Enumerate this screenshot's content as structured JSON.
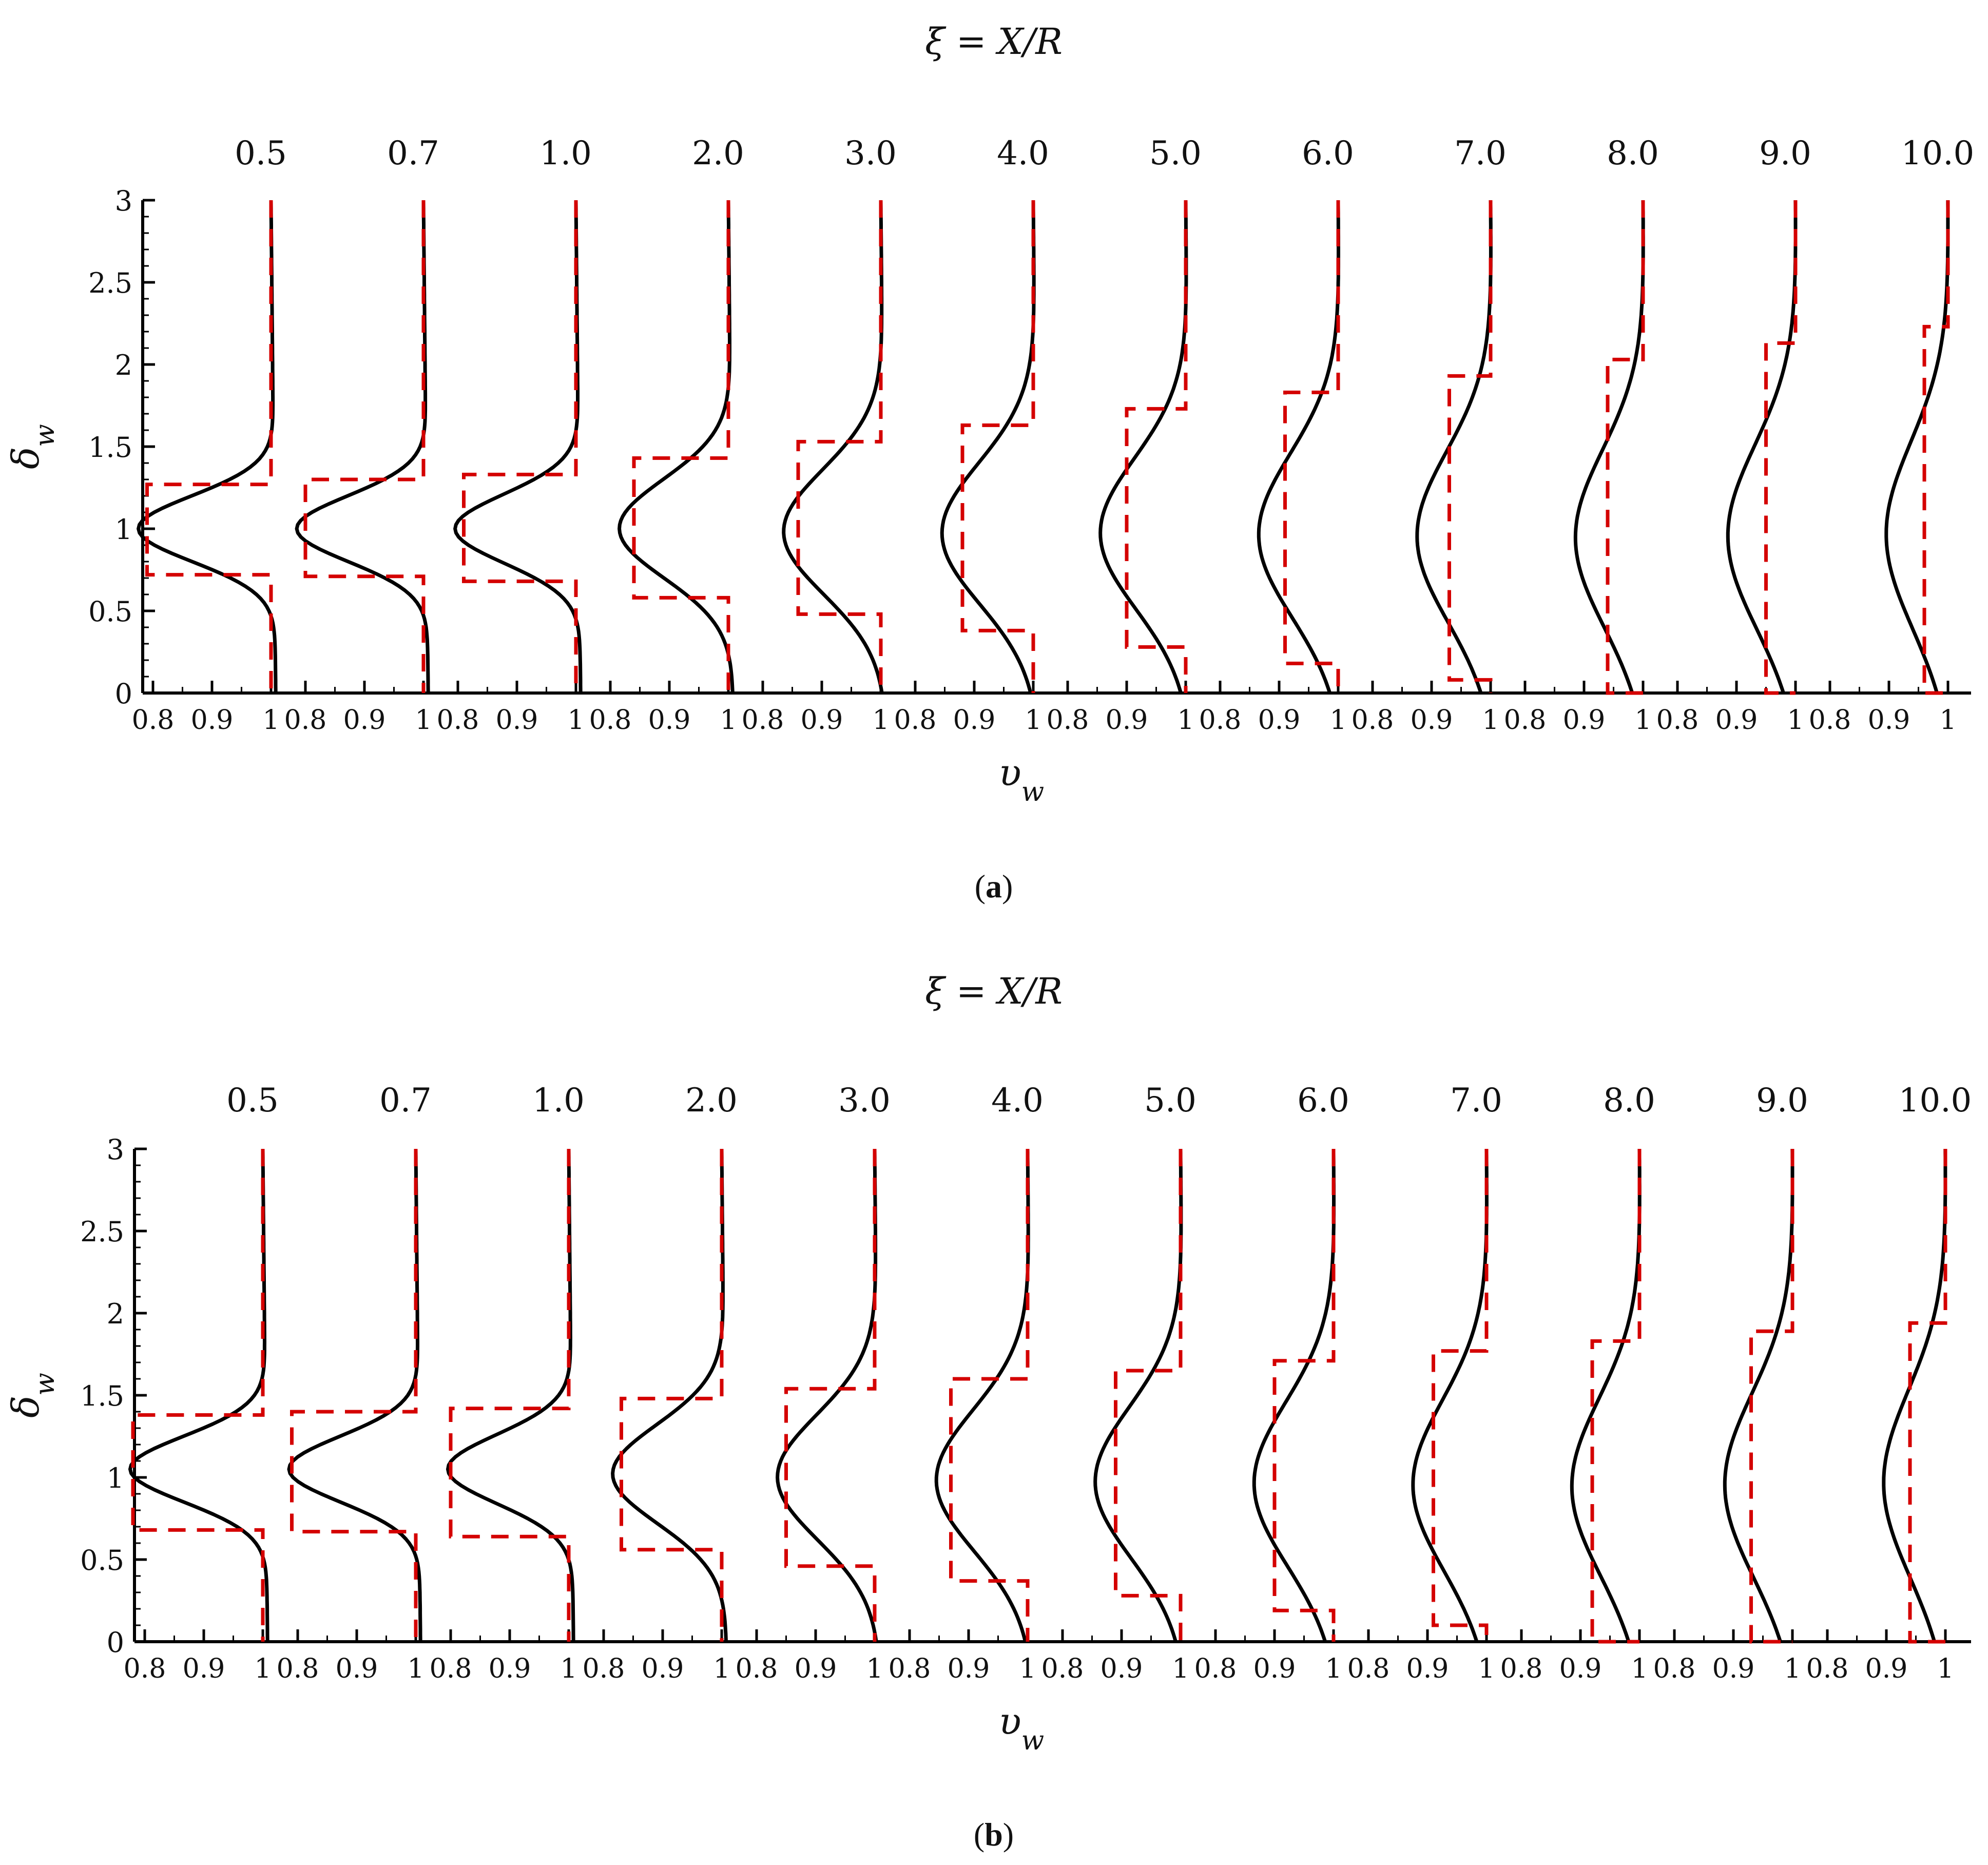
{
  "figure": {
    "panels": [
      {
        "caption_prefix": "(",
        "caption_letter": "a",
        "caption_suffix": ")"
      },
      {
        "caption_prefix": "(",
        "caption_letter": "b",
        "caption_suffix": ")"
      }
    ]
  },
  "colors": {
    "solid_line": "#000000",
    "dashed_line": "#d40000",
    "axis": "#000000"
  },
  "chart_data": [
    {
      "type": "line",
      "panel": "(a)",
      "top_label": "ξ = X/R",
      "ylabel": "δ_w",
      "xlabel": "υ_w",
      "ylim": [
        0,
        3
      ],
      "yticks": [
        "0",
        "0.5",
        "1",
        "1.5",
        "2",
        "2.5",
        "3"
      ],
      "xticks_per_station": [
        "0.8",
        "0.9",
        "1"
      ],
      "xlim_per_station": [
        0.76,
        1.02
      ],
      "stations": [
        "0.5",
        "0.7",
        "1.0",
        "2.0",
        "3.0",
        "4.0",
        "5.0",
        "6.0",
        "7.0",
        "8.0",
        "9.0",
        "10.0"
      ],
      "series": [
        {
          "style": "solid",
          "profiles": [
            {
              "station": "0.5",
              "min_velocity": 0.77,
              "center": 1.0,
              "width": 0.2
            },
            {
              "station": "0.7",
              "min_velocity": 0.78,
              "center": 1.0,
              "width": 0.2
            },
            {
              "station": "1.0",
              "min_velocity": 0.79,
              "center": 1.0,
              "width": 0.21
            },
            {
              "station": "2.0",
              "min_velocity": 0.81,
              "center": 1.0,
              "width": 0.3
            },
            {
              "station": "3.0",
              "min_velocity": 0.83,
              "center": 0.98,
              "width": 0.38
            },
            {
              "station": "4.0",
              "min_velocity": 0.84,
              "center": 0.97,
              "width": 0.43
            },
            {
              "station": "5.0",
              "min_velocity": 0.85,
              "center": 0.97,
              "width": 0.46
            },
            {
              "station": "6.0",
              "min_velocity": 0.86,
              "center": 0.96,
              "width": 0.5
            },
            {
              "station": "7.0",
              "min_velocity": 0.87,
              "center": 0.95,
              "width": 0.52
            },
            {
              "station": "8.0",
              "min_velocity": 0.88,
              "center": 0.94,
              "width": 0.54
            },
            {
              "station": "9.0",
              "min_velocity": 0.88,
              "center": 0.95,
              "width": 0.56
            },
            {
              "station": "10.0",
              "min_velocity": 0.89,
              "center": 0.96,
              "width": 0.57
            }
          ]
        },
        {
          "style": "dashed",
          "profiles": [
            {
              "station": "0.5",
              "deficit_velocity": 0.79,
              "lower": 0.72,
              "upper": 1.27,
              "top": 1.44
            },
            {
              "station": "0.7",
              "deficit_velocity": 0.8,
              "lower": 0.71,
              "upper": 1.3,
              "top": 1.44
            },
            {
              "station": "1.0",
              "deficit_velocity": 0.81,
              "lower": 0.68,
              "upper": 1.33,
              "top": 1.44
            },
            {
              "station": "2.0",
              "deficit_velocity": 0.84,
              "lower": 0.58,
              "upper": 1.43,
              "top": 1.65
            },
            {
              "station": "3.0",
              "deficit_velocity": 0.86,
              "lower": 0.48,
              "upper": 1.53,
              "top": 1.63
            },
            {
              "station": "4.0",
              "deficit_velocity": 0.88,
              "lower": 0.38,
              "upper": 1.63,
              "top": 1.73
            },
            {
              "station": "5.0",
              "deficit_velocity": 0.9,
              "lower": 0.28,
              "upper": 1.73,
              "top": 1.83
            },
            {
              "station": "6.0",
              "deficit_velocity": 0.91,
              "lower": 0.18,
              "upper": 1.83,
              "top": 1.93
            },
            {
              "station": "7.0",
              "deficit_velocity": 0.93,
              "lower": 0.08,
              "upper": 1.93,
              "top": 2.03
            },
            {
              "station": "8.0",
              "deficit_velocity": 0.94,
              "lower": 0.0,
              "upper": 2.03,
              "top": 2.13
            },
            {
              "station": "9.0",
              "deficit_velocity": 0.95,
              "lower": 0.0,
              "upper": 2.13,
              "top": 2.23
            },
            {
              "station": "10.0",
              "deficit_velocity": 0.96,
              "lower": 0.0,
              "upper": 2.23,
              "top": 2.33
            }
          ]
        }
      ],
      "grid": false
    },
    {
      "type": "line",
      "panel": "(b)",
      "top_label": "ξ = X/R",
      "ylabel": "δ_w",
      "xlabel": "υ_w",
      "ylim": [
        0,
        3
      ],
      "yticks": [
        "0",
        "0.5",
        "1",
        "1.5",
        "2",
        "2.5",
        "3"
      ],
      "xticks_per_station": [
        "0.8",
        "0.9",
        "1"
      ],
      "xlim_per_station": [
        0.76,
        1.02
      ],
      "stations": [
        "0.5",
        "0.7",
        "1.0",
        "2.0",
        "3.0",
        "4.0",
        "5.0",
        "6.0",
        "7.0",
        "8.0",
        "9.0",
        "10.0"
      ],
      "series": [
        {
          "style": "solid",
          "profiles": [
            {
              "station": "0.5",
              "min_velocity": 0.77,
              "center": 1.05,
              "width": 0.2
            },
            {
              "station": "0.7",
              "min_velocity": 0.78,
              "center": 1.05,
              "width": 0.2
            },
            {
              "station": "1.0",
              "min_velocity": 0.79,
              "center": 1.05,
              "width": 0.21
            },
            {
              "station": "2.0",
              "min_velocity": 0.81,
              "center": 1.02,
              "width": 0.3
            },
            {
              "station": "3.0",
              "min_velocity": 0.83,
              "center": 1.0,
              "width": 0.38
            },
            {
              "station": "4.0",
              "min_velocity": 0.84,
              "center": 0.98,
              "width": 0.43
            },
            {
              "station": "5.0",
              "min_velocity": 0.85,
              "center": 0.97,
              "width": 0.46
            },
            {
              "station": "6.0",
              "min_velocity": 0.86,
              "center": 0.96,
              "width": 0.5
            },
            {
              "station": "7.0",
              "min_velocity": 0.87,
              "center": 0.95,
              "width": 0.52
            },
            {
              "station": "8.0",
              "min_velocity": 0.88,
              "center": 0.94,
              "width": 0.54
            },
            {
              "station": "9.0",
              "min_velocity": 0.88,
              "center": 0.95,
              "width": 0.56
            },
            {
              "station": "10.0",
              "min_velocity": 0.89,
              "center": 0.96,
              "width": 0.57
            }
          ]
        },
        {
          "style": "dashed",
          "profiles": [
            {
              "station": "0.5",
              "deficit_velocity": 0.78,
              "lower": 0.68,
              "upper": 1.38,
              "top": 1.44
            },
            {
              "station": "0.7",
              "deficit_velocity": 0.79,
              "lower": 0.67,
              "upper": 1.4,
              "top": 1.44
            },
            {
              "station": "1.0",
              "deficit_velocity": 0.8,
              "lower": 0.64,
              "upper": 1.42,
              "top": 1.44
            },
            {
              "station": "2.0",
              "deficit_velocity": 0.83,
              "lower": 0.56,
              "upper": 1.48,
              "top": 1.63
            },
            {
              "station": "3.0",
              "deficit_velocity": 0.85,
              "lower": 0.46,
              "upper": 1.54,
              "top": 1.73
            },
            {
              "station": "4.0",
              "deficit_velocity": 0.87,
              "lower": 0.37,
              "upper": 1.6,
              "top": 1.78
            },
            {
              "station": "5.0",
              "deficit_velocity": 0.89,
              "lower": 0.28,
              "upper": 1.65,
              "top": 1.85
            },
            {
              "station": "6.0",
              "deficit_velocity": 0.9,
              "lower": 0.19,
              "upper": 1.71,
              "top": 1.92
            },
            {
              "station": "7.0",
              "deficit_velocity": 0.91,
              "lower": 0.1,
              "upper": 1.77,
              "top": 1.97
            },
            {
              "station": "8.0",
              "deficit_velocity": 0.92,
              "lower": 0.0,
              "upper": 1.83,
              "top": 2.0
            },
            {
              "station": "9.0",
              "deficit_velocity": 0.93,
              "lower": 0.0,
              "upper": 1.89,
              "top": 2.03
            },
            {
              "station": "10.0",
              "deficit_velocity": 0.94,
              "lower": 0.0,
              "upper": 1.94,
              "top": 2.06
            }
          ]
        }
      ],
      "grid": false
    }
  ]
}
